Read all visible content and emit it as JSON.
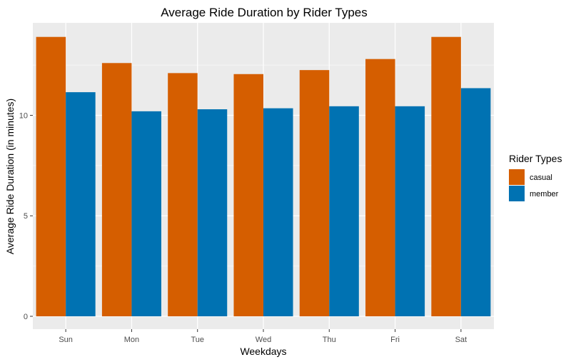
{
  "chart_data": {
    "type": "bar",
    "title": "Average Ride Duration by Rider Types",
    "xlabel": "Weekdays",
    "ylabel": "Average Ride Duration (in minutes)",
    "categories": [
      "Sun",
      "Mon",
      "Tue",
      "Wed",
      "Thu",
      "Fri",
      "Sat"
    ],
    "series": [
      {
        "name": "casual",
        "color": "#D55E00",
        "values": [
          13.9,
          12.6,
          12.1,
          12.05,
          12.25,
          12.8,
          13.9
        ]
      },
      {
        "name": "member",
        "color": "#0072B2",
        "values": [
          11.15,
          10.2,
          10.3,
          10.35,
          10.45,
          10.45,
          11.35
        ]
      }
    ],
    "ylim": [
      0,
      14.6
    ],
    "yticks": [
      0,
      5,
      10
    ],
    "grid": true,
    "panel_background": "#EBEBEB",
    "legend": {
      "title": "Rider Types",
      "position": "right"
    }
  }
}
